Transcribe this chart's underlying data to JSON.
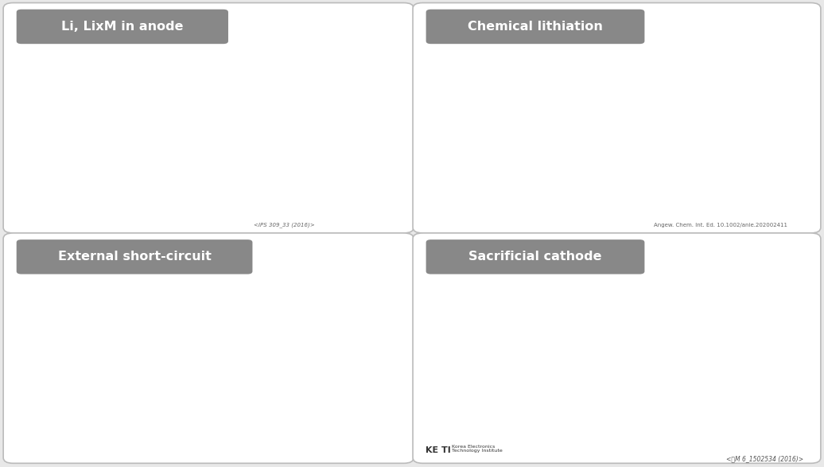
{
  "bg_color": "#e8e8e8",
  "panel_bg": "#ffffff",
  "panel_border": "#bbbbbb",
  "header_bg": "#888888",
  "header_text": "#ffffff",
  "gray_dark": "#222222",
  "gray_mid": "#666666",
  "gray_light": "#aaaaaa",
  "gray_lighter": "#cccccc",
  "gray_box": "#444444",
  "panel1_title": "Li, LixM in anode",
  "panel2_title": "Chemical lithiation",
  "panel3_title": "External short-circuit",
  "panel4_title": "Sacrificial cathode",
  "ref1": "<IPS 309_33 (2016)>",
  "ref2": "Angew. Chem. Int. Ed. 10.1002/anie.202002411",
  "ref4": "<성M 6_1502534 (2016)>",
  "keti": "KETI  Korea Electronics\n        Technology Institute"
}
